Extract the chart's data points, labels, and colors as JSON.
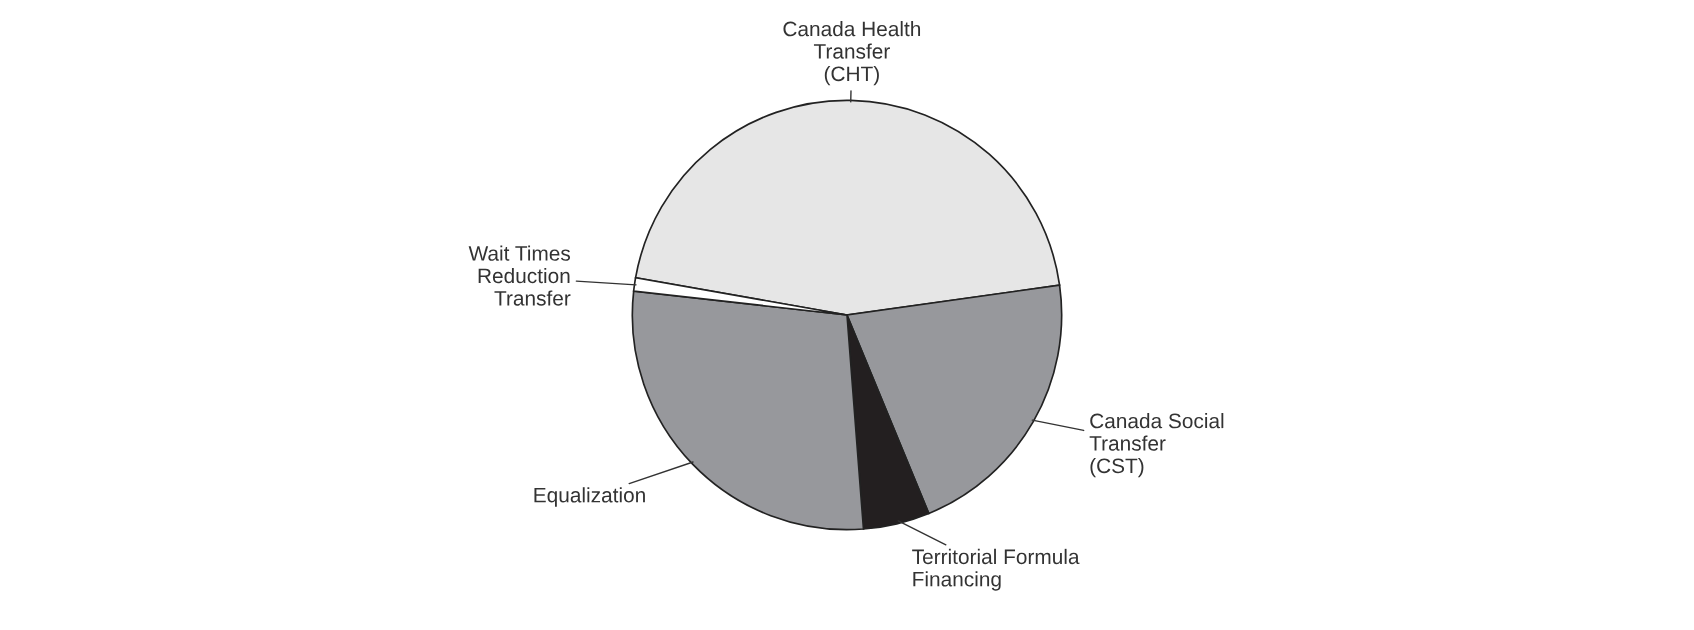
{
  "chart_data": {
    "type": "pie",
    "categories": [
      "Canada Health\nTransfer\n(CHT)",
      "Canada Social\nTransfer\n(CST)",
      "Territorial Formula\nFinancing",
      "Equalization",
      "Wait Times\nReduction\nTransfer"
    ],
    "values": [
      45,
      21,
      5,
      28,
      1
    ],
    "colors": [
      "#e6e6e6",
      "#97989c",
      "#231f20",
      "#97989c",
      "#ffffff"
    ]
  }
}
